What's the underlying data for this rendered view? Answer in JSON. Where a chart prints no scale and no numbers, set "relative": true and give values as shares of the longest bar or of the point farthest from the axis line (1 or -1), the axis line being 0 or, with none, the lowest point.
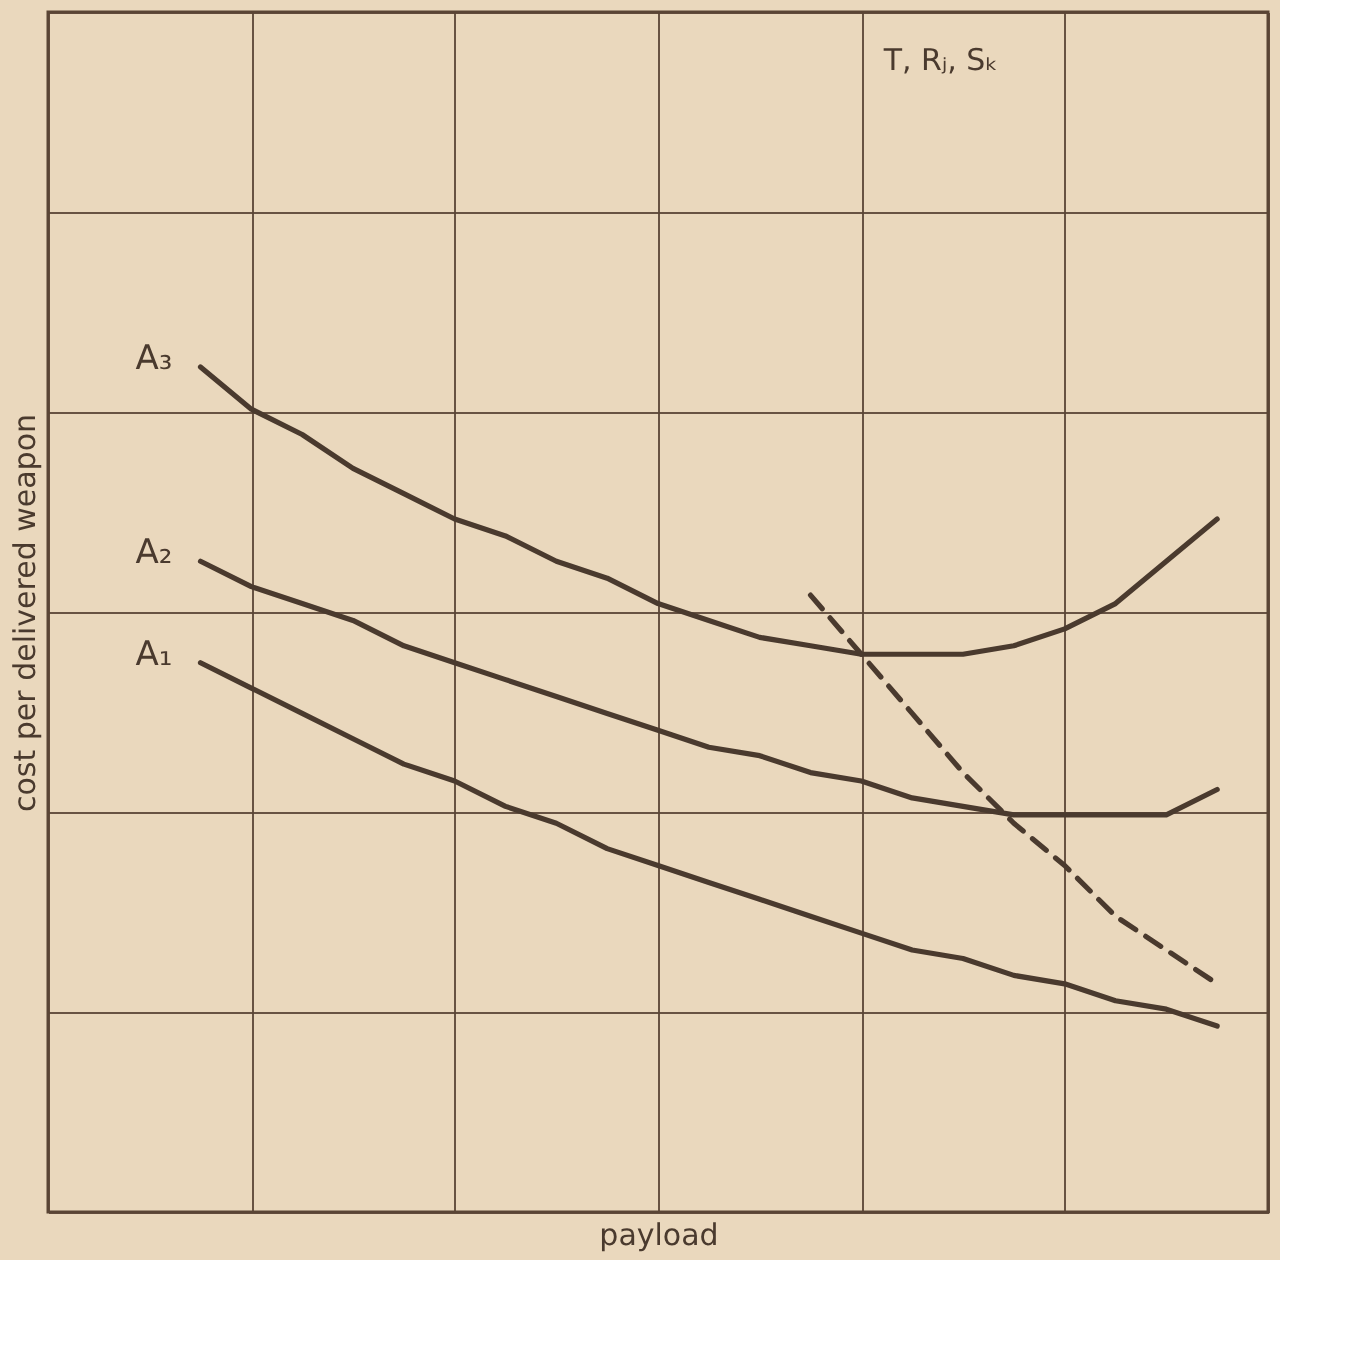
{
  "chart_data": {
    "type": "line",
    "relative": true,
    "xlabel": "payload",
    "ylabel": "cost per delivered weapon",
    "categories": [
      null,
      null,
      null,
      null,
      null,
      null,
      null,
      null,
      null,
      null,
      null,
      null,
      null,
      null,
      null,
      null,
      null,
      null,
      null,
      null,
      null
    ],
    "series": [
      {
        "name": "A₃",
        "color": "#4a3a2e",
        "line_style": "solid",
        "values": [
          1.0,
          0.95,
          0.92,
          0.88,
          0.85,
          0.82,
          0.8,
          0.77,
          0.75,
          0.72,
          0.7,
          0.68,
          0.67,
          0.66,
          0.66,
          0.66,
          0.67,
          0.69,
          0.72,
          0.77,
          0.82
        ]
      },
      {
        "name": "A₂",
        "color": "#4a3a2e",
        "line_style": "solid",
        "values": [
          0.77,
          0.74,
          0.72,
          0.7,
          0.67,
          0.65,
          0.63,
          0.61,
          0.59,
          0.57,
          0.55,
          0.54,
          0.52,
          0.51,
          0.49,
          0.48,
          0.47,
          0.47,
          0.47,
          0.47,
          0.5
        ]
      },
      {
        "name": "A₁",
        "color": "#4a3a2e",
        "line_style": "solid",
        "values": [
          0.65,
          0.62,
          0.59,
          0.56,
          0.53,
          0.51,
          0.48,
          0.46,
          0.43,
          0.41,
          0.39,
          0.37,
          0.35,
          0.33,
          0.31,
          0.3,
          0.28,
          0.27,
          0.25,
          0.24,
          0.22
        ]
      },
      {
        "color": "#4a3a2e",
        "line_style": "dashed",
        "values": [
          null,
          null,
          null,
          null,
          null,
          null,
          null,
          null,
          null,
          null,
          null,
          null,
          0.73,
          0.66,
          0.59,
          0.52,
          0.46,
          0.41,
          0.35,
          0.31,
          0.27
        ]
      }
    ],
    "annotations": [
      "T, Rⱼ, Sₖ"
    ],
    "grid": true,
    "legend": false
  }
}
